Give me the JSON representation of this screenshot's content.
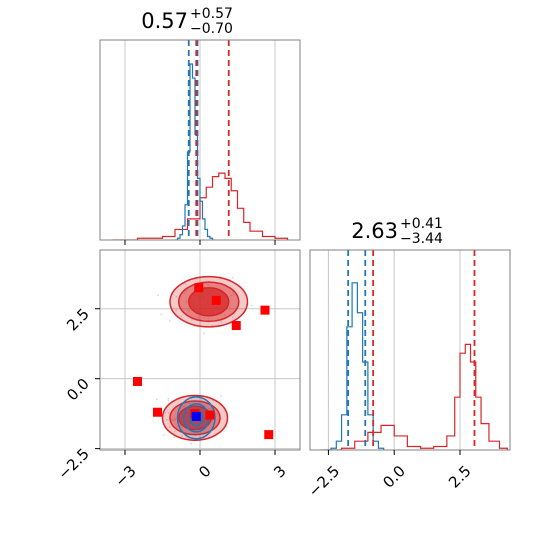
{
  "chart_data": {
    "type": "corner",
    "params": [
      {
        "title": {
          "value": "0.57",
          "upper": "+0.57",
          "lower": "−0.70"
        },
        "xlim": [
          -4.0,
          4.0
        ],
        "xticks": [
          {
            "value": -3,
            "label": "−3"
          },
          {
            "value": 0,
            "label": "0"
          },
          {
            "value": 3,
            "label": "3"
          }
        ],
        "quantile_lines": {
          "blue": [
            -0.45,
            -0.1
          ],
          "red": [
            -0.15,
            1.15
          ]
        }
      },
      {
        "title": {
          "value": "2.63",
          "upper": "+0.41",
          "lower": "−3.44"
        },
        "xlim": [
          -3.2,
          4.4
        ],
        "xticks": [
          {
            "value": -2.5,
            "label": "−2.5"
          },
          {
            "value": 0.0,
            "label": "0.0"
          },
          {
            "value": 2.5,
            "label": "2.5"
          }
        ],
        "quantile_lines": {
          "blue": [
            -1.75,
            -1.1
          ],
          "red": [
            -0.8,
            3.05
          ]
        }
      }
    ],
    "joint": {
      "xlim": [
        -4.0,
        4.0
      ],
      "ylim": [
        -2.55,
        4.6
      ],
      "yticks": [
        {
          "value": -2.5,
          "label": "−2.5"
        },
        {
          "value": 0.0,
          "label": "0.0"
        },
        {
          "value": 2.5,
          "label": "2.5"
        }
      ],
      "red_markers": [
        {
          "x": -0.05,
          "y": 3.25
        },
        {
          "x": 0.65,
          "y": 2.8
        },
        {
          "x": 2.6,
          "y": 2.45
        },
        {
          "x": 1.45,
          "y": 1.9
        },
        {
          "x": -2.5,
          "y": -0.1
        },
        {
          "x": -1.7,
          "y": -1.2
        },
        {
          "x": 0.4,
          "y": -1.3
        },
        {
          "x": -0.2,
          "y": -1.25
        },
        {
          "x": 2.75,
          "y": -2.0
        }
      ],
      "blue_markers": [
        {
          "x": -0.15,
          "y": -1.35
        }
      ],
      "red_modes": [
        {
          "cx": 0.35,
          "cy": 2.75,
          "levels": [
            [
              1.55,
              0.9
            ],
            [
              1.2,
              0.7
            ],
            [
              0.8,
              0.5
            ]
          ]
        },
        {
          "cx": -0.2,
          "cy": -1.4,
          "levels": [
            [
              1.3,
              0.8
            ],
            [
              1.0,
              0.6
            ],
            [
              0.65,
              0.42
            ]
          ]
        }
      ],
      "blue_mode": {
        "cx": -0.15,
        "cy": -1.4,
        "levels": [
          [
            0.75,
            0.75
          ],
          [
            0.5,
            0.5
          ],
          [
            0.25,
            0.28
          ]
        ]
      }
    },
    "marginal_hist": [
      {
        "blue": {
          "x": [
            -1.0,
            -0.9,
            -0.8,
            -0.7,
            -0.6,
            -0.5,
            -0.4,
            -0.3,
            -0.2,
            -0.1,
            0.0,
            0.1,
            0.2,
            0.3,
            0.4,
            0.5,
            0.6
          ],
          "y": [
            0.0,
            0.01,
            0.03,
            0.08,
            0.2,
            0.5,
            1.0,
            0.92,
            0.6,
            0.35,
            0.22,
            0.12,
            0.06,
            0.02,
            0.01,
            0.0,
            0.0
          ]
        },
        "red": {
          "x": [
            -3.5,
            -3.0,
            -2.5,
            -2.0,
            -1.5,
            -1.0,
            -0.5,
            0.0,
            0.25,
            0.5,
            0.75,
            1.0,
            1.25,
            1.5,
            1.75,
            2.0,
            2.5,
            3.0,
            3.5
          ],
          "y": [
            0.0,
            0.0,
            0.01,
            0.01,
            0.02,
            0.06,
            0.12,
            0.24,
            0.3,
            0.36,
            0.38,
            0.35,
            0.28,
            0.18,
            0.1,
            0.05,
            0.02,
            0.01,
            0.0
          ]
        }
      },
      {
        "blue": {
          "x": [
            -2.6,
            -2.4,
            -2.2,
            -2.0,
            -1.8,
            -1.6,
            -1.4,
            -1.2,
            -1.0,
            -0.8,
            -0.6,
            -0.4
          ],
          "y": [
            0.0,
            0.01,
            0.05,
            0.2,
            0.7,
            0.95,
            0.78,
            0.5,
            0.2,
            0.05,
            0.01,
            0.0
          ]
        },
        "red": {
          "x": [
            -2.8,
            -2.0,
            -1.5,
            -1.0,
            -0.5,
            0.0,
            0.5,
            1.0,
            1.5,
            2.0,
            2.3,
            2.5,
            2.7,
            2.9,
            3.1,
            3.3,
            3.6,
            4.0,
            4.3
          ],
          "y": [
            0.0,
            0.01,
            0.05,
            0.1,
            0.14,
            0.08,
            0.02,
            0.01,
            0.02,
            0.08,
            0.3,
            0.55,
            0.6,
            0.5,
            0.3,
            0.15,
            0.05,
            0.01,
            0.0
          ]
        }
      }
    ],
    "colors": {
      "blue": "#1f77b4",
      "red": "#d62728",
      "grid": "#c8c8c8",
      "frame": "#808080"
    },
    "grid": true
  }
}
